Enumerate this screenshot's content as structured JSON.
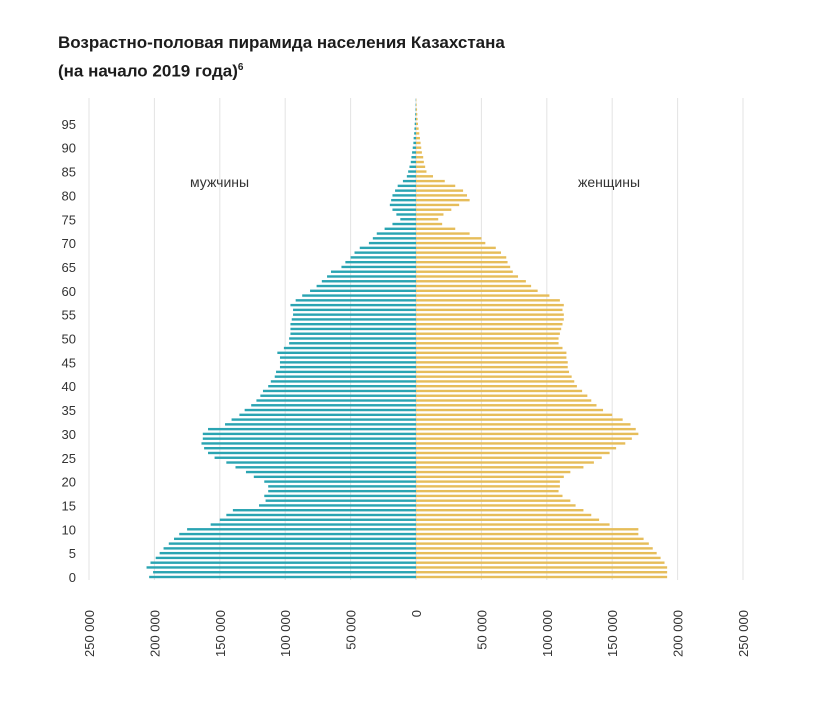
{
  "title_line1": "Возрастно-половая пирамида населения Казахстана",
  "title_line2": "(на начало 2019 года)",
  "title_footnote": "6",
  "chart_data": {
    "type": "bar",
    "orientation": "horizontal-pyramid",
    "left_label": "мужчины",
    "right_label": "женщины",
    "colors": {
      "men": "#2aa4b2",
      "women": "#e6bd5a",
      "grid": "#e3e3e3"
    },
    "y_ticks": [
      0,
      5,
      10,
      15,
      20,
      25,
      30,
      35,
      40,
      45,
      50,
      55,
      60,
      65,
      70,
      75,
      80,
      85,
      90,
      95
    ],
    "x_ticks_left": [
      "250 000",
      "200 000",
      "150 000",
      "100 000",
      "50 000",
      "0"
    ],
    "x_ticks_right": [
      "50 000",
      "100 000",
      "150 000",
      "200 000",
      "250 000"
    ],
    "xlim": [
      -250000,
      250000
    ],
    "ylim": [
      0,
      100
    ],
    "ages": [
      0,
      1,
      2,
      3,
      4,
      5,
      6,
      7,
      8,
      9,
      10,
      11,
      12,
      13,
      14,
      15,
      16,
      17,
      18,
      19,
      20,
      21,
      22,
      23,
      24,
      25,
      26,
      27,
      28,
      29,
      30,
      31,
      32,
      33,
      34,
      35,
      36,
      37,
      38,
      39,
      40,
      41,
      42,
      43,
      44,
      45,
      46,
      47,
      48,
      49,
      50,
      51,
      52,
      53,
      54,
      55,
      56,
      57,
      58,
      59,
      60,
      61,
      62,
      63,
      64,
      65,
      66,
      67,
      68,
      69,
      70,
      71,
      72,
      73,
      74,
      75,
      76,
      77,
      78,
      79,
      80,
      81,
      82,
      83,
      84,
      85,
      86,
      87,
      88,
      89,
      90,
      91,
      92,
      93,
      94,
      95,
      96,
      97,
      98,
      99,
      100
    ],
    "men": [
      204000,
      201000,
      206000,
      203000,
      199000,
      196000,
      193000,
      189000,
      185000,
      181000,
      175000,
      157000,
      150000,
      145000,
      140000,
      120000,
      115000,
      116000,
      113000,
      113000,
      116000,
      124000,
      130000,
      138000,
      145000,
      154000,
      159000,
      162000,
      164000,
      163000,
      163000,
      159000,
      146000,
      141000,
      135000,
      131000,
      126000,
      122000,
      119000,
      117000,
      113000,
      111000,
      108000,
      107000,
      104000,
      104000,
      104000,
      106000,
      101000,
      97000,
      97000,
      96000,
      96000,
      96000,
      95000,
      94000,
      94000,
      96000,
      92000,
      87000,
      81000,
      76000,
      72000,
      68000,
      65000,
      57000,
      54000,
      50000,
      47000,
      43000,
      36000,
      33000,
      30000,
      24000,
      18000,
      12000,
      15000,
      18000,
      20000,
      19000,
      18000,
      16000,
      14000,
      10000,
      7000,
      6000,
      5000,
      4000,
      3500,
      3000,
      2500,
      2000,
      1800,
      1400,
      1200,
      1000,
      800,
      600,
      400,
      300,
      200
    ],
    "women": [
      192000,
      192000,
      192000,
      190000,
      187000,
      184000,
      181000,
      178000,
      174000,
      170000,
      170000,
      148000,
      140000,
      134000,
      128000,
      122000,
      118000,
      112000,
      109000,
      110000,
      110000,
      113000,
      118000,
      128000,
      136000,
      142000,
      148000,
      153000,
      160000,
      165000,
      170000,
      168000,
      164000,
      158000,
      150000,
      143000,
      138000,
      134000,
      131000,
      127000,
      123000,
      121000,
      119000,
      117000,
      116000,
      116000,
      115000,
      115000,
      112000,
      109000,
      109000,
      110000,
      111000,
      112000,
      113000,
      113000,
      112000,
      113000,
      110000,
      102000,
      93000,
      88000,
      84000,
      78000,
      74000,
      72000,
      70000,
      69000,
      65000,
      61000,
      53000,
      50000,
      41000,
      30000,
      20000,
      17000,
      21000,
      27000,
      33000,
      41000,
      39000,
      36000,
      30000,
      22000,
      13000,
      8000,
      7000,
      6000,
      5500,
      4500,
      4000,
      3500,
      3000,
      2500,
      2000,
      1500,
      1200,
      1000,
      800,
      500,
      300
    ]
  }
}
